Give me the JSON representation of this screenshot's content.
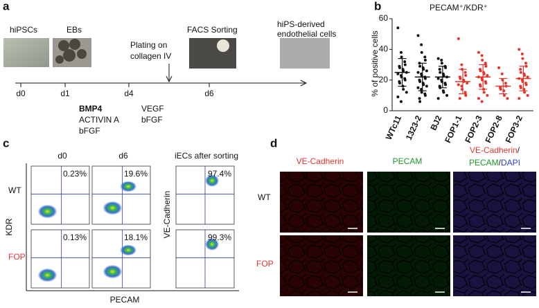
{
  "panel_labels": [
    "a",
    "b",
    "c",
    "d"
  ],
  "panel_a": {
    "images": [
      "hiPSCs",
      "EBs",
      "FACS Sorting"
    ],
    "endothelial": [
      "hiPS-derived",
      "endothelial cells"
    ],
    "plating": [
      "Plating on",
      "collagen IV"
    ],
    "days": [
      "d0",
      "d1",
      "d4",
      "d6"
    ],
    "eb_factors": [
      "BMP4",
      "ACTIVIN A",
      "bFGF"
    ],
    "plating_factors": [
      "VEGF",
      "bFGF"
    ]
  },
  "chart_data": {
    "type": "dot",
    "title": "PECAM⁺/KDR⁺",
    "y_label": "% of positive cells",
    "categories": [
      "WTc11",
      "1323-2",
      "BJ2",
      "FOP1-1",
      "FOP2-3",
      "FOP2-8",
      "FOP3-2"
    ],
    "colors": [
      "#111111",
      "#111111",
      "#111111",
      "#e8332c",
      "#e8332c",
      "#e8332c",
      "#e8332c"
    ],
    "values": [
      [
        54,
        38,
        35,
        32,
        30,
        29,
        28,
        27,
        26,
        25,
        24,
        23,
        22,
        21,
        20,
        19,
        18,
        16,
        14,
        12,
        9,
        6
      ],
      [
        49,
        43,
        38,
        35,
        33,
        31,
        29,
        28,
        27,
        26,
        25,
        24,
        23,
        22,
        21,
        20,
        19,
        18,
        17,
        16,
        15,
        14,
        12,
        11,
        10,
        8,
        6
      ],
      [
        34,
        33,
        31,
        29,
        28,
        27,
        25,
        24,
        23,
        22,
        21,
        20,
        19,
        18,
        17,
        16,
        15,
        13,
        12,
        10,
        8
      ],
      [
        47,
        30,
        27,
        25,
        23,
        22,
        21,
        20,
        19,
        18,
        17,
        16,
        14,
        12,
        10,
        8
      ],
      [
        38,
        36,
        33,
        31,
        29,
        27,
        26,
        25,
        24,
        23,
        22,
        21,
        20,
        19,
        18,
        17,
        16,
        14,
        12,
        10,
        8,
        6
      ],
      [
        28,
        24,
        20,
        18,
        16,
        15,
        14,
        13,
        10,
        8
      ],
      [
        40,
        37,
        34,
        31,
        29,
        27,
        25,
        24,
        23,
        22,
        21,
        20,
        19,
        18,
        17,
        16,
        15,
        14,
        12,
        10,
        8
      ]
    ],
    "means": [
      25,
      22,
      22,
      19,
      22,
      16,
      21
    ],
    "sd": [
      9,
      9,
      7,
      8,
      8,
      5,
      8
    ],
    "ylim": [
      0,
      60
    ],
    "yticks": [
      0,
      20,
      40,
      60
    ]
  },
  "panel_c": {
    "columns": [
      "d0",
      "d6",
      "iECs after sorting"
    ],
    "rows": [
      "WT",
      "FOP"
    ],
    "percentages": [
      [
        "0.23%",
        "19.6%",
        "97.4%"
      ],
      [
        "0.13%",
        "18.1%",
        "99.3%"
      ]
    ],
    "y_label": "KDR",
    "y_label_sorted": "VE-Cadherin",
    "x_label": "PECAM"
  },
  "panel_d": {
    "columns": [
      "VE-Cadherin",
      "PECAM"
    ],
    "merge_title": [
      "VE-Cadherin",
      "/",
      "PECAM",
      "/",
      "DAPI"
    ],
    "rows": [
      "WT",
      "FOP"
    ]
  }
}
